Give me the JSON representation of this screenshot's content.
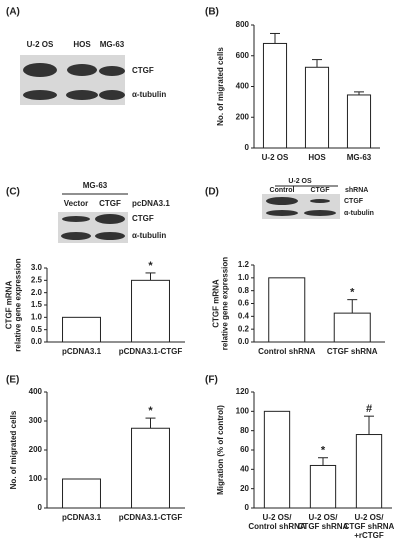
{
  "panels": [
    "(A)",
    "(B)",
    "(C)",
    "(D)",
    "(E)",
    "(F)"
  ],
  "blots": [
    {
      "columns": [
        "U-2 OS",
        "HOS",
        "MG-63"
      ],
      "rows": [
        "CTGF",
        "α-tubulin"
      ]
    },
    {
      "header": "MG-63",
      "columns": [
        "Vector",
        "CTGF",
        "pcDNA3.1"
      ],
      "rows": [
        "CTGF",
        "α-tubulin"
      ]
    },
    {
      "header": "U-2 OS",
      "columns": [
        "Control",
        "CTGF",
        "shRNA"
      ],
      "rows": [
        "CTGF",
        "α-tubulin"
      ]
    }
  ],
  "chart_data": [
    {
      "type": "bar",
      "y_label": [
        "No. of migrated cells"
      ],
      "categories": [
        [
          "U-2 OS"
        ],
        [
          "HOS"
        ],
        [
          "MG-63"
        ]
      ],
      "values": [
        680,
        525,
        345
      ],
      "errors": [
        65,
        50,
        20
      ],
      "markers": [
        null,
        null,
        null
      ],
      "ylim": [
        0,
        800
      ],
      "yticks": [
        0,
        200,
        400,
        600,
        800
      ],
      "color": "#ffffff"
    },
    {
      "type": "bar",
      "y_label": [
        "CTGF mRNA",
        "relative gene expression"
      ],
      "categories": [
        [
          "pCDNA3.1"
        ],
        [
          "pCDNA3.1-CTGF"
        ]
      ],
      "values": [
        1.0,
        2.5
      ],
      "errors": [
        0,
        0.3
      ],
      "markers": [
        null,
        "*"
      ],
      "ylim": [
        0,
        3
      ],
      "yticks": [
        {
          "value": 0,
          "label": "0.0"
        },
        0.5,
        {
          "value": 1,
          "label": "1.0"
        },
        1.5,
        {
          "value": 2,
          "label": "2.0"
        },
        2.5,
        {
          "value": 3,
          "label": "3.0"
        }
      ],
      "color": "#ffffff"
    },
    {
      "type": "bar",
      "y_label": [
        "CTGF mRNA",
        "relative gene expression"
      ],
      "categories": [
        [
          "Control shRNA"
        ],
        [
          "CTGF shRNA"
        ]
      ],
      "values": [
        1.0,
        0.45
      ],
      "errors": [
        0,
        0.21
      ],
      "markers": [
        null,
        "*"
      ],
      "ylim": [
        0,
        1.2
      ],
      "yticks": [
        {
          "value": 0,
          "label": "0.0"
        },
        0.2,
        0.4,
        0.6,
        0.8,
        {
          "value": 1,
          "label": "1.0"
        },
        1.2
      ],
      "color": "#ffffff"
    },
    {
      "type": "bar",
      "y_label": [
        "No. of migrated cells"
      ],
      "categories": [
        [
          "pCDNA3.1"
        ],
        [
          "pCDNA3.1-CTGF"
        ]
      ],
      "values": [
        100,
        275
      ],
      "errors": [
        0,
        35
      ],
      "markers": [
        null,
        "*"
      ],
      "ylim": [
        0,
        400
      ],
      "yticks": [
        0,
        100,
        200,
        300,
        400
      ],
      "color": "#ffffff"
    },
    {
      "type": "bar",
      "y_label": [
        "Migration (% of control)"
      ],
      "categories": [
        [
          "U-2 OS/",
          "Control shRNA"
        ],
        [
          "U-2 OS/",
          "CTGF shRNA"
        ],
        [
          "U-2 OS/",
          "CTGF shRNA",
          "+rCTGF"
        ]
      ],
      "values": [
        100,
        44,
        76
      ],
      "errors": [
        0,
        8,
        19
      ],
      "markers": [
        null,
        "*",
        "#"
      ],
      "ylim": [
        0,
        120
      ],
      "yticks": [
        0,
        20,
        40,
        60,
        80,
        100,
        120
      ],
      "color": "#ffffff"
    }
  ]
}
